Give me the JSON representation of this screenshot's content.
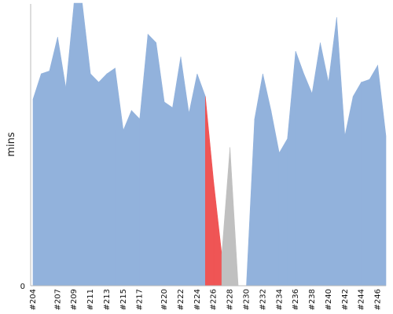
{
  "chart_data": {
    "type": "area",
    "ylabel": "mins",
    "ylim": [
      0,
      100
    ],
    "y_ticks": [
      {
        "value": 0,
        "label": "0"
      }
    ],
    "x_labels": [
      "#204",
      "#207",
      "#209",
      "#211",
      "#213",
      "#215",
      "#217",
      "#220",
      "#222",
      "#224",
      "#226",
      "#228",
      "#230",
      "#232",
      "#234",
      "#236",
      "#238",
      "#240",
      "#242",
      "#244",
      "#246"
    ],
    "x_label_positions": [
      0,
      3,
      5,
      7,
      9,
      11,
      13,
      16,
      18,
      20,
      22,
      24,
      26,
      28,
      30,
      32,
      34,
      36,
      38,
      40,
      42
    ],
    "builds": [
      "#204",
      "#205",
      "#206",
      "#207",
      "#208",
      "#209",
      "#210",
      "#211",
      "#212",
      "#213",
      "#214",
      "#215",
      "#216",
      "#217",
      "#218",
      "#219",
      "#220",
      "#221",
      "#222",
      "#223",
      "#224",
      "#225",
      "#226",
      "#227",
      "#228",
      "#229",
      "#230",
      "#231",
      "#232",
      "#233",
      "#234",
      "#235",
      "#236",
      "#237",
      "#238",
      "#239",
      "#240",
      "#241",
      "#242",
      "#243",
      "#244",
      "#245",
      "#246",
      "#247"
    ],
    "values": [
      66,
      75,
      76,
      88,
      70,
      100,
      100,
      75,
      72,
      75,
      77,
      55,
      62,
      59,
      89,
      86,
      65,
      63,
      81,
      61,
      75,
      67,
      37,
      11,
      49,
      0,
      0,
      59,
      75,
      62,
      47,
      52,
      83,
      75,
      68,
      86,
      72,
      95,
      53,
      67,
      72,
      73,
      78,
      53
    ],
    "status": [
      "success",
      "success",
      "success",
      "success",
      "success",
      "success",
      "success",
      "success",
      "success",
      "success",
      "success",
      "success",
      "success",
      "success",
      "success",
      "success",
      "success",
      "success",
      "success",
      "success",
      "success",
      "success",
      "failed",
      "failed",
      "aborted",
      "aborted",
      "aborted",
      "success",
      "success",
      "success",
      "success",
      "success",
      "success",
      "success",
      "success",
      "success",
      "success",
      "success",
      "success",
      "success",
      "success",
      "success",
      "success",
      "success"
    ],
    "colors": {
      "success": "#92b2dc",
      "failed": "#ef5555",
      "aborted": "#c0c0c0",
      "axis": "#bbbbbb"
    }
  }
}
